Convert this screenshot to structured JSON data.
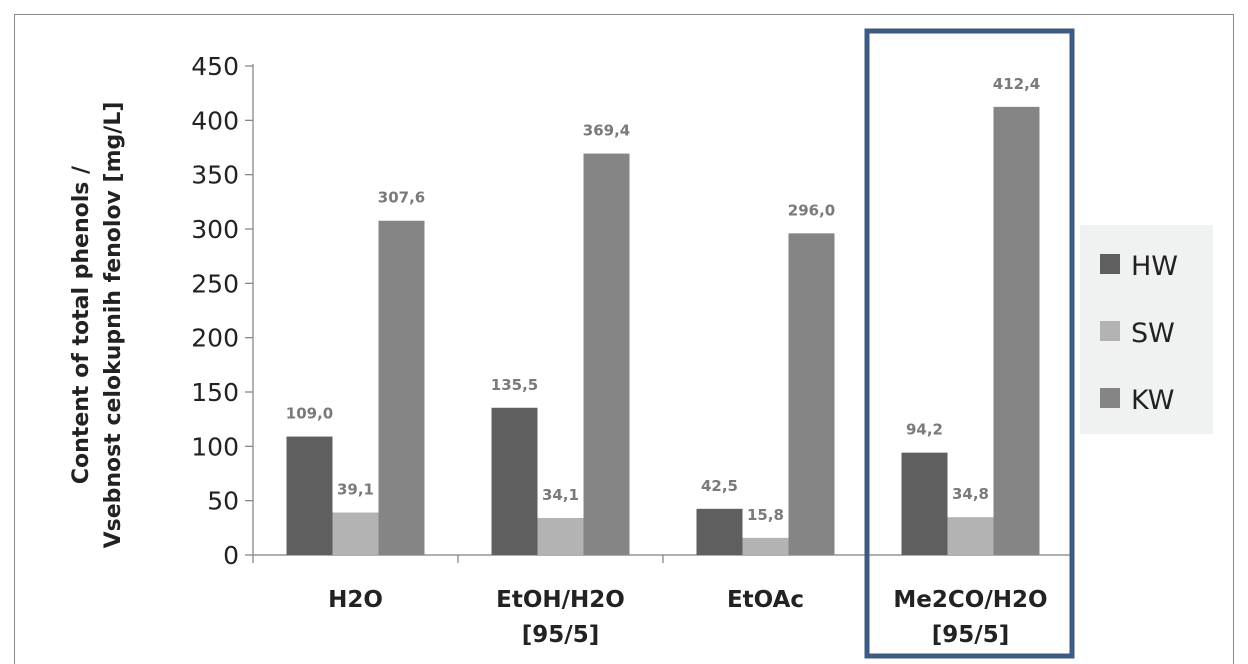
{
  "chart_data": {
    "type": "bar",
    "categories": [
      [
        "H2O"
      ],
      [
        "EtOH/H2O",
        "[95/5]"
      ],
      [
        "EtOAc"
      ],
      [
        "Me2CO/H2O",
        "[95/5]"
      ]
    ],
    "series": [
      {
        "name": "HW",
        "color": "#5f5f5f",
        "values": [
          109.0,
          135.5,
          42.5,
          94.2
        ],
        "labels": [
          "109,0",
          "135,5",
          "42,5",
          "94,2"
        ]
      },
      {
        "name": "SW",
        "color": "#b3b3b3",
        "values": [
          39.1,
          34.1,
          15.8,
          34.8
        ],
        "labels": [
          "39,1",
          "34,1",
          "15,8",
          "34,8"
        ]
      },
      {
        "name": "KW",
        "color": "#858585",
        "values": [
          307.6,
          369.4,
          296.0,
          412.4
        ],
        "labels": [
          "307,6",
          "369,4",
          "296,0",
          "412,4"
        ]
      }
    ],
    "ylabel": [
      "Content of total phenols /",
      "Vsebnost celokupnih fenolov [mg/L]"
    ],
    "ylim": [
      0,
      450
    ],
    "yticks": [
      0,
      50,
      100,
      150,
      200,
      250,
      300,
      350,
      400,
      450
    ],
    "grid": false,
    "legend_position": "right",
    "highlighted_category": "Me2CO/H2O [95/5]",
    "highlight_color": "#3d5a80"
  }
}
